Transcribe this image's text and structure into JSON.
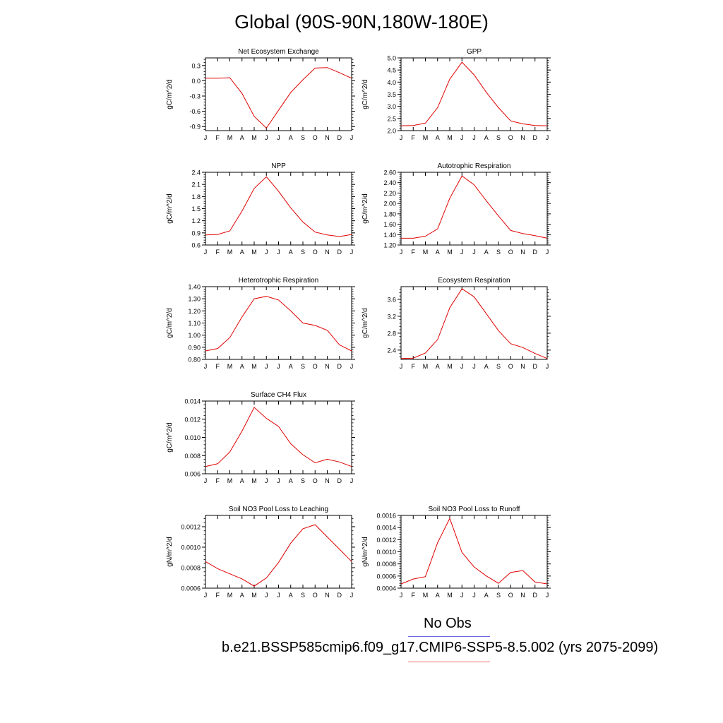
{
  "figure": {
    "title": "Global (90S-90N,180W-180E)",
    "legend": {
      "obs_label": "No Obs",
      "obs_color": "#6a6adf",
      "model_label": "b.e21.BSSP585cmip6.f09_g17.CMIP6-SSP5-8.5.002 (yrs 2075-2099)",
      "model_color": "#f06a6a"
    }
  },
  "chart_data": [
    {
      "type": "line",
      "title": "Net Ecosystem Exchange",
      "ylabel": "gC/m^2/d",
      "categories": [
        "J",
        "F",
        "M",
        "A",
        "M",
        "J",
        "J",
        "A",
        "S",
        "O",
        "N",
        "D",
        "J"
      ],
      "yticks": [
        "0.3",
        "0.0",
        "-0.3",
        "-0.6",
        "-0.9"
      ],
      "ytick_values": [
        0.3,
        0.0,
        -0.3,
        -0.6,
        -0.9
      ],
      "ylim": [
        -0.98,
        0.45
      ],
      "line_color": "#e00000",
      "values": [
        0.05,
        0.05,
        0.06,
        -0.25,
        -0.7,
        -0.93,
        -0.58,
        -0.23,
        0.02,
        0.25,
        0.26,
        0.16,
        0.05
      ]
    },
    {
      "type": "line",
      "title": "GPP",
      "ylabel": "gC/m^2/d",
      "categories": [
        "J",
        "F",
        "M",
        "A",
        "M",
        "J",
        "J",
        "A",
        "S",
        "O",
        "N",
        "D",
        "J"
      ],
      "yticks": [
        "5.0",
        "4.5",
        "4.0",
        "3.5",
        "3.0",
        "2.5",
        "2.0"
      ],
      "ytick_values": [
        5.0,
        4.5,
        4.0,
        3.5,
        3.0,
        2.5,
        2.0
      ],
      "ylim": [
        2.0,
        5.0
      ],
      "line_color": "#e00000",
      "values": [
        2.2,
        2.21,
        2.31,
        2.95,
        4.12,
        4.82,
        4.3,
        3.58,
        2.95,
        2.4,
        2.28,
        2.21,
        2.2
      ]
    },
    {
      "type": "line",
      "title": "NPP",
      "ylabel": "gC/m^2/d",
      "categories": [
        "J",
        "F",
        "M",
        "A",
        "M",
        "J",
        "J",
        "A",
        "S",
        "O",
        "N",
        "D",
        "J"
      ],
      "yticks": [
        "2.4",
        "2.1",
        "1.8",
        "1.5",
        "1.2",
        "0.9",
        "0.6"
      ],
      "ytick_values": [
        2.4,
        2.1,
        1.8,
        1.5,
        1.2,
        0.9,
        0.6
      ],
      "ylim": [
        0.6,
        2.4
      ],
      "line_color": "#e00000",
      "values": [
        0.85,
        0.86,
        0.95,
        1.44,
        2.0,
        2.29,
        1.93,
        1.52,
        1.17,
        0.92,
        0.85,
        0.81,
        0.86
      ]
    },
    {
      "type": "line",
      "title": "Autotrophic Respiration",
      "ylabel": "gC/m^2/d",
      "categories": [
        "J",
        "F",
        "M",
        "A",
        "M",
        "J",
        "J",
        "A",
        "S",
        "O",
        "N",
        "D",
        "J"
      ],
      "yticks": [
        "2.60",
        "2.40",
        "2.20",
        "2.00",
        "1.80",
        "1.60",
        "1.40",
        "1.20"
      ],
      "ytick_values": [
        2.6,
        2.4,
        2.2,
        2.0,
        1.8,
        1.6,
        1.4,
        1.2
      ],
      "ylim": [
        1.2,
        2.6
      ],
      "line_color": "#e00000",
      "values": [
        1.33,
        1.33,
        1.37,
        1.51,
        2.1,
        2.53,
        2.36,
        2.05,
        1.76,
        1.48,
        1.42,
        1.38,
        1.33
      ]
    },
    {
      "type": "line",
      "title": "Heterotrophic Respiration",
      "ylabel": "gC/m^2/d",
      "categories": [
        "J",
        "F",
        "M",
        "A",
        "M",
        "J",
        "J",
        "A",
        "S",
        "O",
        "N",
        "D",
        "J"
      ],
      "yticks": [
        "1.40",
        "1.30",
        "1.20",
        "1.10",
        "1.00",
        "0.90",
        "0.80"
      ],
      "ytick_values": [
        1.4,
        1.3,
        1.2,
        1.1,
        1.0,
        0.9,
        0.8
      ],
      "ylim": [
        0.8,
        1.4
      ],
      "line_color": "#e00000",
      "values": [
        0.87,
        0.89,
        0.98,
        1.15,
        1.3,
        1.32,
        1.29,
        1.2,
        1.1,
        1.08,
        1.04,
        0.92,
        0.87
      ]
    },
    {
      "type": "line",
      "title": "Ecosystem Respiration",
      "ylabel": "gC/m^2/d",
      "categories": [
        "J",
        "F",
        "M",
        "A",
        "M",
        "J",
        "J",
        "A",
        "S",
        "O",
        "N",
        "D",
        "J"
      ],
      "yticks": [
        "3.6",
        "3.2",
        "2.8",
        "2.4"
      ],
      "ytick_values": [
        3.6,
        3.2,
        2.8,
        2.4
      ],
      "ylim": [
        2.18,
        3.9
      ],
      "line_color": "#e00000",
      "values": [
        2.2,
        2.21,
        2.33,
        2.65,
        3.4,
        3.85,
        3.66,
        3.26,
        2.86,
        2.55,
        2.46,
        2.32,
        2.2
      ]
    },
    {
      "type": "line",
      "title": "Surface CH4 Flux",
      "ylabel": "gC/m^2/d",
      "categories": [
        "J",
        "F",
        "M",
        "A",
        "M",
        "J",
        "J",
        "A",
        "S",
        "O",
        "N",
        "D",
        "J"
      ],
      "yticks": [
        "0.014",
        "0.012",
        "0.010",
        "0.008",
        "0.006"
      ],
      "ytick_values": [
        0.014,
        0.012,
        0.01,
        0.008,
        0.006
      ],
      "ylim": [
        0.006,
        0.014
      ],
      "line_color": "#e00000",
      "values": [
        0.0068,
        0.0071,
        0.0084,
        0.0107,
        0.0133,
        0.0121,
        0.0112,
        0.0093,
        0.0081,
        0.0072,
        0.0076,
        0.0073,
        0.0068
      ]
    },
    {
      "type": "line",
      "title": "Soil NO3 Pool Loss to Leaching",
      "ylabel": "gN/m^2/d",
      "categories": [
        "J",
        "F",
        "M",
        "A",
        "M",
        "J",
        "J",
        "A",
        "S",
        "O",
        "N",
        "D",
        "J"
      ],
      "yticks": [
        "0.0012",
        "0.0010",
        "0.0008",
        "0.0006"
      ],
      "ytick_values": [
        0.0012,
        0.001,
        0.0008,
        0.0006
      ],
      "ylim": [
        0.0006,
        0.00131
      ],
      "line_color": "#e00000",
      "values": [
        0.00086,
        0.00079,
        0.00074,
        0.00069,
        0.00062,
        0.0007,
        0.00085,
        0.00104,
        0.00118,
        0.00122,
        0.0011,
        0.00098,
        0.00086
      ]
    },
    {
      "type": "line",
      "title": "Soil NO3 Pool Loss to Runoff",
      "ylabel": "gN/m^2/d",
      "categories": [
        "J",
        "F",
        "M",
        "A",
        "M",
        "J",
        "J",
        "A",
        "S",
        "O",
        "N",
        "D",
        "J"
      ],
      "yticks": [
        "0.0016",
        "0.0014",
        "0.0012",
        "0.0010",
        "0.0008",
        "0.0006",
        "0.0004"
      ],
      "ytick_values": [
        0.0016,
        0.0014,
        0.0012,
        0.001,
        0.0008,
        0.0006,
        0.0004
      ],
      "ylim": [
        0.0004,
        0.0016
      ],
      "line_color": "#e00000",
      "values": [
        0.00047,
        0.00055,
        0.00059,
        0.00115,
        0.00155,
        0.00099,
        0.00075,
        0.0006,
        0.00048,
        0.00066,
        0.00069,
        0.0005,
        0.00047
      ]
    }
  ]
}
